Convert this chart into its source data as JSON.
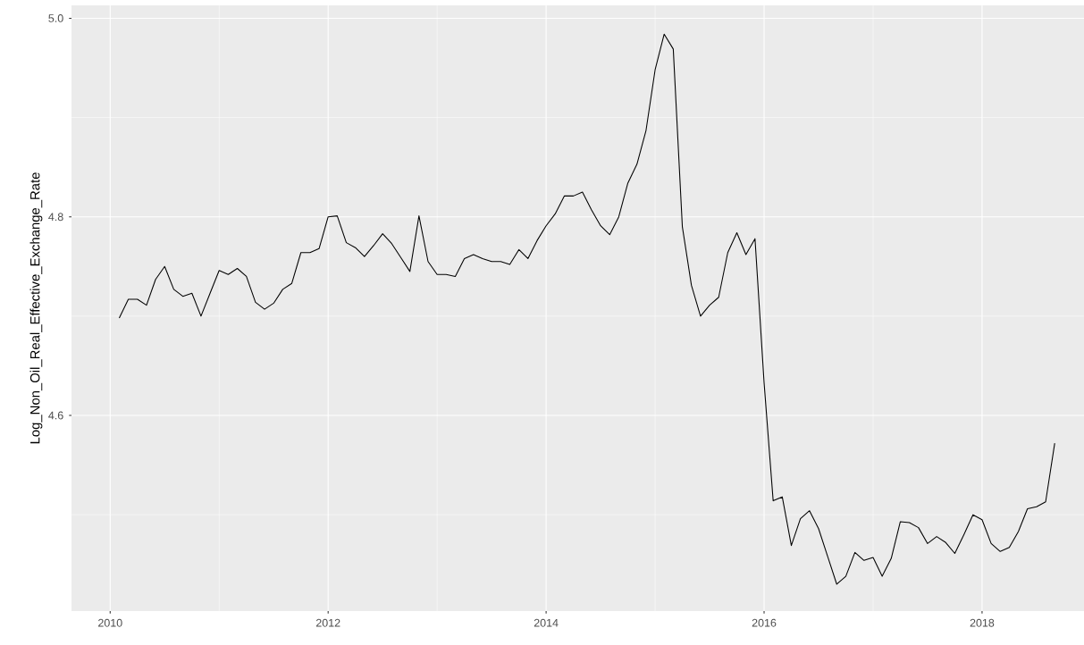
{
  "chart_data": {
    "type": "line",
    "ylabel": "Log_Non_Oil_Real_Effective_Exchange_Rate",
    "x": [
      "2010-02",
      "2010-03",
      "2010-04",
      "2010-05",
      "2010-06",
      "2010-07",
      "2010-08",
      "2010-09",
      "2010-10",
      "2010-11",
      "2010-12",
      "2011-01",
      "2011-02",
      "2011-03",
      "2011-04",
      "2011-05",
      "2011-06",
      "2011-07",
      "2011-08",
      "2011-09",
      "2011-10",
      "2011-11",
      "2011-12",
      "2012-01",
      "2012-02",
      "2012-03",
      "2012-04",
      "2012-05",
      "2012-06",
      "2012-07",
      "2012-08",
      "2012-09",
      "2012-10",
      "2012-11",
      "2012-12",
      "2013-01",
      "2013-02",
      "2013-03",
      "2013-04",
      "2013-05",
      "2013-06",
      "2013-07",
      "2013-08",
      "2013-09",
      "2013-10",
      "2013-11",
      "2013-12",
      "2014-01",
      "2014-02",
      "2014-03",
      "2014-04",
      "2014-05",
      "2014-06",
      "2014-07",
      "2014-08",
      "2014-09",
      "2014-10",
      "2014-11",
      "2014-12",
      "2015-01",
      "2015-02",
      "2015-03",
      "2015-04",
      "2015-05",
      "2015-06",
      "2015-07",
      "2015-08",
      "2015-09",
      "2015-10",
      "2015-11",
      "2015-12",
      "2016-01",
      "2016-02",
      "2016-03",
      "2016-04",
      "2016-05",
      "2016-06",
      "2016-07",
      "2016-08",
      "2016-09",
      "2016-10",
      "2016-11",
      "2016-12",
      "2017-01",
      "2017-02",
      "2017-03",
      "2017-04",
      "2017-05",
      "2017-06",
      "2017-07",
      "2017-08",
      "2017-09",
      "2017-10",
      "2017-11",
      "2017-12",
      "2018-01",
      "2018-02",
      "2018-03",
      "2018-04",
      "2018-05",
      "2018-06",
      "2018-07",
      "2018-08",
      "2018-09"
    ],
    "series": [
      {
        "color": "#000000",
        "values": [
          4.698,
          4.717,
          4.717,
          4.711,
          4.737,
          4.75,
          4.727,
          4.72,
          4.723,
          4.7,
          4.723,
          4.746,
          4.742,
          4.748,
          4.74,
          4.714,
          4.707,
          4.713,
          4.727,
          4.733,
          4.764,
          4.764,
          4.768,
          4.8,
          4.801,
          4.774,
          4.769,
          4.76,
          4.771,
          4.783,
          4.773,
          4.759,
          4.745,
          4.801,
          4.755,
          4.742,
          4.742,
          4.74,
          4.758,
          4.762,
          4.758,
          4.755,
          4.755,
          4.752,
          4.767,
          4.758,
          4.776,
          4.791,
          4.803,
          4.821,
          4.821,
          4.825,
          4.807,
          4.791,
          4.782,
          4.8,
          4.834,
          4.853,
          4.887,
          4.948,
          4.984,
          4.969,
          4.79,
          4.731,
          4.7,
          4.711,
          4.719,
          4.764,
          4.784,
          4.762,
          4.778,
          4.633,
          4.514,
          4.518,
          4.469,
          4.496,
          4.504,
          4.486,
          4.458,
          4.43,
          4.438,
          4.462,
          4.454,
          4.457,
          4.438,
          4.456,
          4.493,
          4.492,
          4.487,
          4.471,
          4.478,
          4.472,
          4.461,
          4.48,
          4.5,
          4.495,
          4.471,
          4.463,
          4.467,
          4.483,
          4.506,
          4.508,
          4.513,
          4.572
        ]
      }
    ],
    "xlim": [
      "2009-08-24",
      "2018-12-08"
    ],
    "ylim": [
      4.403,
      5.013
    ],
    "xticks": [
      "2010",
      "2012",
      "2014",
      "2016",
      "2018"
    ],
    "yticks": [
      {
        "value": 4.6,
        "label": "4.6"
      },
      {
        "value": 4.8,
        "label": "4.8"
      },
      {
        "value": 5.0,
        "label": "5.0"
      }
    ],
    "grid": true
  }
}
